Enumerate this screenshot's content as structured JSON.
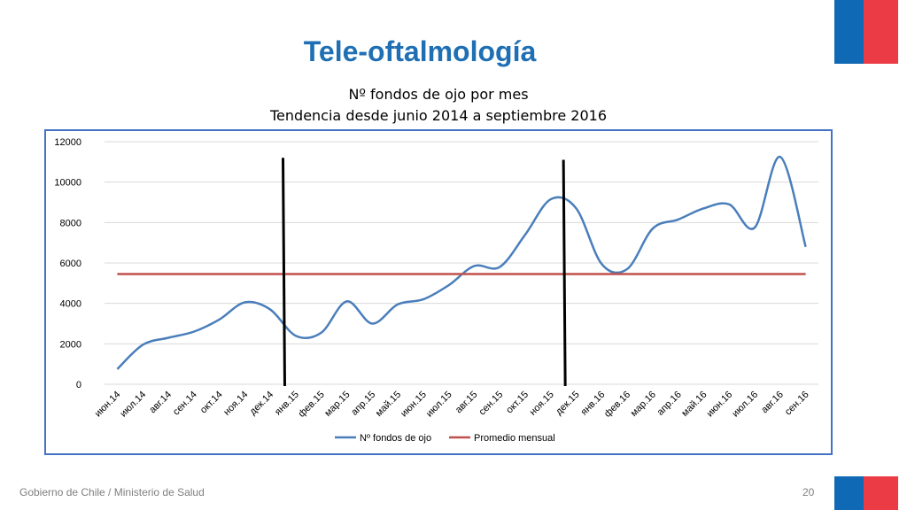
{
  "slide": {
    "title": "Tele-oftalmología",
    "footer_org": "Gobierno de Chile / Ministerio de Salud",
    "page_number": "20"
  },
  "colors": {
    "title": "#1F6FB4",
    "flag_blue": "#0F69B4",
    "flag_red": "#EB3C46",
    "series_main": "#4A7EBB",
    "series_avg": "#C0504D",
    "frame": "#4472C4"
  },
  "chart_data": {
    "type": "line",
    "title": "Nº fondos de ojo por mes",
    "subtitle": "Tendencia desde junio 2014 a septiembre 2016",
    "categories": [
      "июн.14",
      "июл.14",
      "авг.14",
      "сен.14",
      "окт.14",
      "ноя.14",
      "дек.14",
      "янв.15",
      "фев.15",
      "мар.15",
      "апр.15",
      "май.15",
      "июн.15",
      "июл.15",
      "авг.15",
      "сен.15",
      "окт.15",
      "ноя.15",
      "дек.15",
      "янв.16",
      "фев.16",
      "мар.16",
      "апр.16",
      "май.16",
      "июн.16",
      "июл.16",
      "авг.16",
      "сен.16"
    ],
    "series": [
      {
        "name": "Nº fondos de ojo",
        "values": [
          750,
          1950,
          2300,
          2600,
          3200,
          4050,
          3700,
          2400,
          2550,
          4100,
          3000,
          3950,
          4200,
          4900,
          5850,
          5800,
          7400,
          9150,
          8700,
          5950,
          5700,
          7700,
          8150,
          8700,
          8900,
          7750,
          11250,
          6800
        ]
      },
      {
        "name": "Promedio mensual",
        "values": [
          5450,
          5450,
          5450,
          5450,
          5450,
          5450,
          5450,
          5450,
          5450,
          5450,
          5450,
          5450,
          5450,
          5450,
          5450,
          5450,
          5450,
          5450,
          5450,
          5450,
          5450,
          5450,
          5450,
          5450,
          5450,
          5450,
          5450,
          5450
        ]
      }
    ],
    "y_ticks": [
      "0",
      "2000",
      "4000",
      "6000",
      "8000",
      "10000",
      "12000"
    ],
    "ylim": [
      0,
      12000
    ],
    "grid": true,
    "legend_position": "bottom",
    "markers": [
      {
        "between": [
          "дек.14",
          "янв.15"
        ],
        "value_top": 11200
      },
      {
        "between": [
          "ноя.15",
          "дек.15"
        ],
        "value_top": 11100
      }
    ]
  }
}
